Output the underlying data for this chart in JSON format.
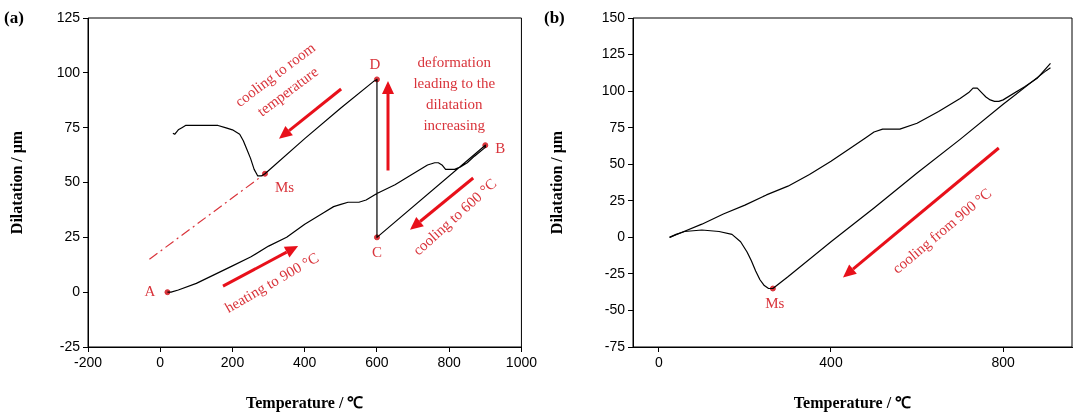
{
  "chart_data": [
    {
      "type": "line",
      "title": "(a)",
      "xlabel": "Temperature / ℃",
      "ylabel": "Dilatation / μm",
      "xlim": [
        -200,
        1000
      ],
      "xticks": [
        -200,
        0,
        200,
        400,
        600,
        800,
        1000
      ],
      "ylim": [
        -25,
        125
      ],
      "yticks": [
        -25,
        0,
        25,
        50,
        75,
        100,
        125
      ],
      "grid": false,
      "legend": false,
      "series": [
        {
          "color": "#000000",
          "marker": "none",
          "line_style": "solid",
          "x": [
            20,
            30,
            50,
            100,
            150,
            200,
            250,
            300,
            350,
            400,
            450,
            480,
            500,
            520,
            550,
            570,
            600,
            650,
            700,
            740,
            760,
            770,
            780,
            790,
            800,
            815,
            830,
            850,
            870,
            900,
            900,
            600,
            600,
            590,
            500,
            400,
            290,
            280,
            270,
            260,
            250,
            240,
            230,
            220,
            200,
            180,
            160,
            130,
            100,
            70,
            60,
            50,
            45,
            40,
            35
          ],
          "values": [
            0,
            0,
            1,
            4,
            8,
            12,
            16,
            21,
            25,
            31,
            36,
            39,
            40,
            41,
            41,
            42,
            45,
            49,
            54,
            58,
            59,
            59,
            58,
            56,
            56,
            56,
            57,
            59,
            62,
            66,
            67,
            25,
            97,
            96,
            84,
            70,
            54,
            53,
            53,
            56,
            61,
            65,
            69,
            72,
            74,
            75,
            76,
            76,
            76,
            76,
            75,
            74,
            73,
            72,
            72.5
          ]
        },
        {
          "color": "#d9343b",
          "marker": "none",
          "line_style": "dashed",
          "x": [
            -30,
            290
          ],
          "values": [
            15,
            54
          ]
        },
        {
          "type": "scatter",
          "color": "#d9343b",
          "marker": "circle",
          "x": [
            20,
            900,
            600,
            600,
            290
          ],
          "values": [
            0,
            67,
            25,
            97,
            54
          ]
        }
      ],
      "annotations": [
        {
          "text": "A",
          "x": 20,
          "y": 0
        },
        {
          "text": "B",
          "x": 900,
          "y": 67
        },
        {
          "text": "C",
          "x": 600,
          "y": 25
        },
        {
          "text": "D",
          "x": 600,
          "y": 97
        },
        {
          "text": "Ms",
          "x": 290,
          "y": 54
        },
        "cooling to room\ntemperature",
        "deformation\nleading to the\ndilatation\nincreasing",
        "cooling to 600 °C",
        "heating to 900 °C"
      ]
    },
    {
      "type": "line",
      "title": "(b)",
      "xlabel": "Temperature / ℃",
      "ylabel": "Dilatation / μm",
      "xlim": [
        -60,
        960
      ],
      "xticks": [
        0,
        400,
        800
      ],
      "ylim": [
        -75,
        150
      ],
      "yticks": [
        -75,
        -50,
        -25,
        0,
        25,
        50,
        75,
        100,
        125,
        150
      ],
      "grid": false,
      "legend": false,
      "series": [
        {
          "color": "#000000",
          "marker": "none",
          "line_style": "solid",
          "x": [
            25,
            50,
            100,
            150,
            200,
            250,
            300,
            350,
            400,
            450,
            480,
            500,
            520,
            540,
            560,
            600,
            650,
            700,
            720,
            730,
            740,
            750,
            760,
            770,
            780,
            790,
            800,
            850,
            880,
            910
          ],
          "values": [
            0,
            3,
            9,
            16,
            22,
            29,
            35,
            43,
            52,
            62,
            68,
            72,
            74,
            74,
            74,
            78,
            86,
            95,
            99,
            102,
            102,
            99,
            96,
            94,
            93,
            93,
            94,
            103,
            109,
            119
          ]
        },
        {
          "color": "#000000",
          "marker": "none",
          "line_style": "solid",
          "x": [
            910,
            900,
            800,
            700,
            600,
            500,
            400,
            300,
            265,
            255,
            245,
            235,
            225,
            215,
            205,
            190,
            170,
            140,
            100,
            60,
            40,
            25
          ],
          "values": [
            116,
            114,
            91,
            67,
            44,
            20,
            -3,
            -27,
            -35,
            -35,
            -33,
            -29,
            -23,
            -16,
            -10,
            -3,
            2,
            4,
            5,
            4,
            2,
            0
          ]
        },
        {
          "type": "scatter",
          "color": "#d9343b",
          "marker": "circle",
          "x": [
            265
          ],
          "values": [
            -35
          ]
        }
      ],
      "annotations": [
        {
          "text": "Ms",
          "x": 265,
          "y": -35
        },
        "cooling from 900 °C"
      ]
    }
  ]
}
